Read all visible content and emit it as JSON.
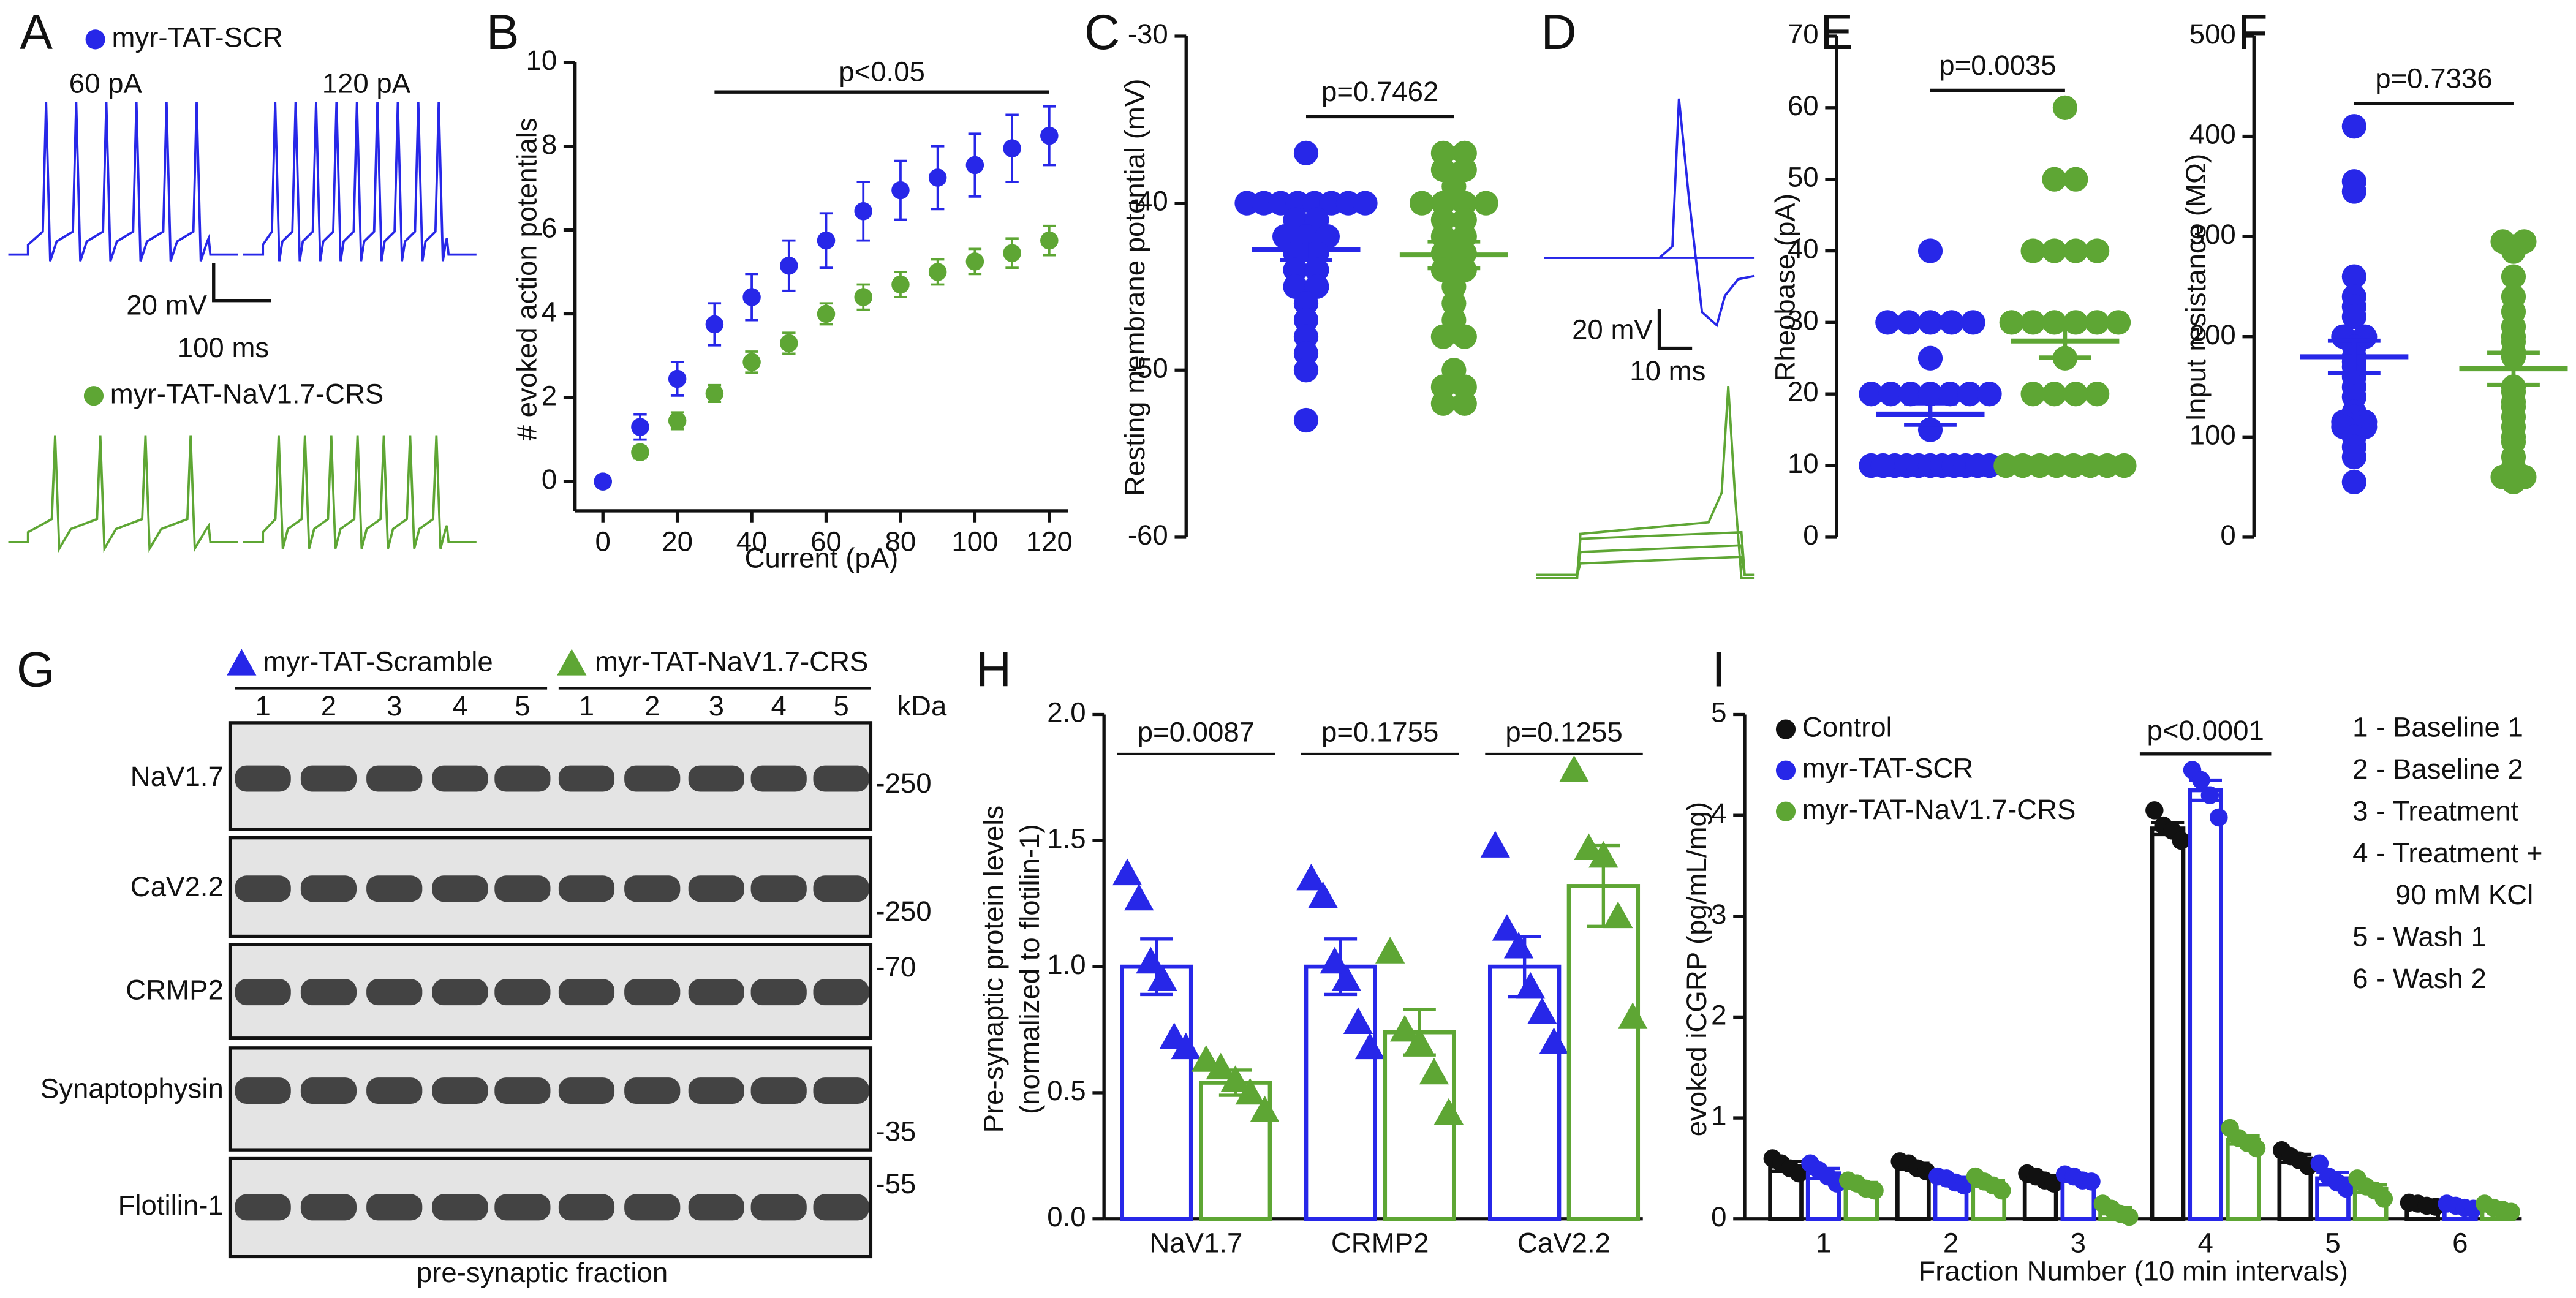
{
  "figure": {
    "panel_labels": [
      "A",
      "B",
      "C",
      "D",
      "E",
      "F",
      "G",
      "H",
      "I"
    ],
    "panel_a": {
      "currents": [
        "60 pA",
        "120 pA"
      ],
      "scale_bar": [
        "20 mV",
        "100 ms"
      ]
    },
    "panel_d": {
      "scale_bar": [
        "20 mV",
        "10 ms"
      ]
    },
    "panel_g": {
      "lanes": [
        "1",
        "2",
        "3",
        "4",
        "5",
        "1",
        "2",
        "3",
        "4",
        "5"
      ],
      "unit": "kDa",
      "rows": [
        "NaV1.7",
        "CaV2.2",
        "CRMP2",
        "Synaptophysin",
        "Flotilin-1"
      ],
      "markers": [
        "-250",
        "-250",
        "-70",
        "-35",
        "-55"
      ],
      "caption": "pre-synaptic fraction"
    }
  },
  "chart_data": [
    {
      "type": "scatter",
      "xlabel": "Current (pA)",
      "ylabel": "# evoked action potentials",
      "x": [
        0,
        10,
        20,
        30,
        40,
        50,
        60,
        70,
        80,
        90,
        100,
        110,
        120
      ],
      "xlim": [
        -7.5,
        125
      ],
      "xticks": [
        0,
        20,
        40,
        60,
        80,
        100,
        120
      ],
      "ylim": [
        -0.7,
        10
      ],
      "yticks": [
        0,
        2,
        4,
        6,
        8,
        10
      ],
      "annotation": {
        "text": "p<0.05",
        "x": [
          30,
          120
        ]
      },
      "series": [
        {
          "name": "myr-TAT-NaV1.7-CRS",
          "color": "#5ea634",
          "values": [
            0,
            0.7,
            1.45,
            2.1,
            2.85,
            3.3,
            4.0,
            4.4,
            4.7,
            5.0,
            5.25,
            5.45,
            5.75
          ],
          "errors": [
            0,
            0.15,
            0.2,
            0.2,
            0.25,
            0.25,
            0.25,
            0.3,
            0.3,
            0.3,
            0.3,
            0.35,
            0.35
          ]
        },
        {
          "name": "myr-TAT-SCR",
          "color": "#2727e8",
          "values": [
            0,
            1.3,
            2.45,
            3.75,
            4.4,
            5.15,
            5.75,
            6.45,
            6.95,
            7.25,
            7.55,
            7.95,
            8.25
          ],
          "errors": [
            0,
            0.3,
            0.4,
            0.5,
            0.55,
            0.6,
            0.65,
            0.7,
            0.7,
            0.75,
            0.75,
            0.8,
            0.7
          ]
        }
      ]
    },
    {
      "type": "strip",
      "ylabel": "Resting membrane potential (mV)",
      "ylim": [
        -60,
        -30
      ],
      "yticks": [
        -30,
        -40,
        -50,
        -60
      ],
      "p_label": "p=0.7462",
      "series": [
        {
          "color": "#2727e8",
          "mean": -42.8,
          "sem": 0.6,
          "values": [
            -37,
            -40,
            -40,
            -40,
            -40,
            -40,
            -40,
            -40,
            -40,
            -41,
            -41,
            -42,
            -42,
            -42,
            -43,
            -43,
            -44,
            -44,
            -45,
            -45,
            -46,
            -47,
            -48,
            -49,
            -50,
            -53
          ]
        },
        {
          "color": "#5ea634",
          "mean": -43.1,
          "sem": 0.8,
          "values": [
            -37,
            -37,
            -38,
            -38,
            -39,
            -40,
            -40,
            -40,
            -40,
            -41,
            -41,
            -42,
            -42,
            -43,
            -43,
            -44,
            -44,
            -45,
            -46,
            -47,
            -48,
            -48,
            -50,
            -51,
            -51,
            -52,
            -52
          ]
        }
      ]
    },
    {
      "type": "strip",
      "ylabel": "Rheobase (pA)",
      "ylim": [
        0,
        70
      ],
      "yticks": [
        0,
        10,
        20,
        30,
        40,
        50,
        60,
        70
      ],
      "p_label": "p=0.0035",
      "series": [
        {
          "color": "#2727e8",
          "mean": 17.2,
          "sem": 1.5,
          "values": [
            40,
            30,
            30,
            30,
            30,
            30,
            25,
            20,
            20,
            20,
            20,
            20,
            20,
            20,
            15,
            10,
            10,
            10,
            10,
            10,
            10,
            10,
            10,
            10,
            10,
            10
          ]
        },
        {
          "color": "#5ea634",
          "mean": 27.4,
          "sem": 2.3,
          "values": [
            60,
            50,
            50,
            40,
            40,
            40,
            40,
            30,
            30,
            30,
            30,
            30,
            30,
            25,
            20,
            20,
            20,
            20,
            10,
            10,
            10,
            10,
            10,
            10,
            10,
            10
          ]
        }
      ]
    },
    {
      "type": "strip",
      "ylabel": "Input resistance (MΩ)",
      "ylim": [
        0,
        500
      ],
      "yticks": [
        0,
        100,
        200,
        300,
        400,
        500
      ],
      "p_label": "p=0.7336",
      "series": [
        {
          "color": "#2727e8",
          "mean": 180,
          "sem": 16,
          "values": [
            410,
            355,
            345,
            260,
            240,
            230,
            220,
            200,
            200,
            190,
            180,
            175,
            170,
            160,
            150,
            140,
            125,
            120,
            115,
            115,
            110,
            110,
            100,
            90,
            80,
            55
          ]
        },
        {
          "color": "#5ea634",
          "mean": 168,
          "sem": 16,
          "values": [
            295,
            295,
            290,
            285,
            260,
            240,
            225,
            210,
            200,
            195,
            185,
            180,
            150,
            145,
            135,
            130,
            120,
            110,
            100,
            95,
            80,
            70,
            65,
            60,
            60,
            55
          ]
        }
      ]
    },
    {
      "type": "bar",
      "marker": "triangle",
      "ylabel": [
        "Pre-synaptic protein levels",
        "(normalized to flotilin-1)"
      ],
      "categories": [
        "NaV1.7",
        "CRMP2",
        "CaV2.2"
      ],
      "ylim": [
        0,
        2
      ],
      "yticks": [
        {
          "value": 0,
          "label": "0.0"
        },
        0.5,
        {
          "value": 1,
          "label": "1.0"
        },
        1.5,
        {
          "value": 2,
          "label": "2.0"
        }
      ],
      "p_labels": [
        "p=0.0087",
        "p=0.1755",
        "p=0.1255"
      ],
      "series": [
        {
          "name": "myr-TAT-Scramble",
          "color": "#2727e8",
          "values": [
            1.0,
            1.0,
            1.0
          ],
          "errors": [
            0.11,
            0.11,
            0.12
          ],
          "points": [
            [
              1.37,
              1.27,
              1.02,
              0.95,
              0.72,
              0.68
            ],
            [
              1.35,
              1.28,
              1.02,
              0.95,
              0.78,
              0.68
            ],
            [
              1.48,
              1.15,
              1.08,
              0.92,
              0.82,
              0.7
            ]
          ]
        },
        {
          "name": "myr-TAT-NaV1.7-CRS",
          "color": "#5ea634",
          "values": [
            0.54,
            0.74,
            1.32
          ],
          "errors": [
            0.05,
            0.09,
            0.16
          ],
          "points": [
            [
              0.63,
              0.6,
              0.55,
              0.5,
              0.43
            ],
            [
              1.06,
              0.75,
              0.7,
              0.58,
              0.42
            ],
            [
              1.78,
              1.47,
              1.44,
              1.2,
              0.8
            ]
          ]
        }
      ]
    },
    {
      "type": "bar",
      "marker": "circle",
      "xlabel": "Fraction Number (10 min intervals)",
      "ylabel": [
        "evoked iCGRP (pg/mL/mg)"
      ],
      "categories": [
        "1",
        "2",
        "3",
        "4",
        "5",
        "6"
      ],
      "ylim": [
        0,
        5
      ],
      "yticks": [
        0,
        1,
        2,
        3,
        4,
        5
      ],
      "significance": "p<0.0001",
      "key": [
        "1 - Baseline 1",
        "2 - Baseline 2",
        "3 - Treatment",
        "4 - Treatment +",
        "90 mM KCl",
        "5 - Wash 1",
        "6 - Wash 2"
      ],
      "series": [
        {
          "name": "Control",
          "color": "#111111",
          "values": [
            0.52,
            0.52,
            0.4,
            3.87,
            0.6,
            0.14
          ],
          "errors": [
            0.05,
            0.03,
            0.03,
            0.06,
            0.04,
            0.01
          ],
          "points": [
            [
              0.6,
              0.55,
              0.5,
              0.45
            ],
            [
              0.57,
              0.55,
              0.5,
              0.47
            ],
            [
              0.45,
              0.42,
              0.38,
              0.35
            ],
            [
              4.05,
              3.9,
              3.85,
              3.75
            ],
            [
              0.68,
              0.62,
              0.58,
              0.52
            ],
            [
              0.16,
              0.15,
              0.13,
              0.12
            ]
          ]
        },
        {
          "name": "myr-TAT-SCR",
          "color": "#2727e8",
          "values": [
            0.45,
            0.38,
            0.4,
            4.25,
            0.4,
            0.12
          ],
          "errors": [
            0.05,
            0.03,
            0.02,
            0.1,
            0.06,
            0.01
          ],
          "points": [
            [
              0.55,
              0.48,
              0.42,
              0.35
            ],
            [
              0.42,
              0.4,
              0.36,
              0.33
            ],
            [
              0.44,
              0.42,
              0.38,
              0.37
            ],
            [
              4.45,
              4.35,
              4.2,
              3.98
            ],
            [
              0.55,
              0.42,
              0.36,
              0.3
            ],
            [
              0.15,
              0.13,
              0.11,
              0.1
            ]
          ]
        },
        {
          "name": "myr-TAT-NaV1.7-CRS",
          "color": "#5ea634",
          "values": [
            0.33,
            0.35,
            0.08,
            0.78,
            0.3,
            0.1
          ],
          "errors": [
            0.03,
            0.03,
            0.03,
            0.04,
            0.04,
            0.02
          ],
          "points": [
            [
              0.38,
              0.35,
              0.3,
              0.28
            ],
            [
              0.42,
              0.37,
              0.33,
              0.28
            ],
            [
              0.15,
              0.1,
              0.05,
              0.02
            ],
            [
              0.9,
              0.8,
              0.75,
              0.7
            ],
            [
              0.4,
              0.32,
              0.28,
              0.2
            ],
            [
              0.15,
              0.11,
              0.09,
              0.07
            ]
          ]
        }
      ]
    }
  ]
}
